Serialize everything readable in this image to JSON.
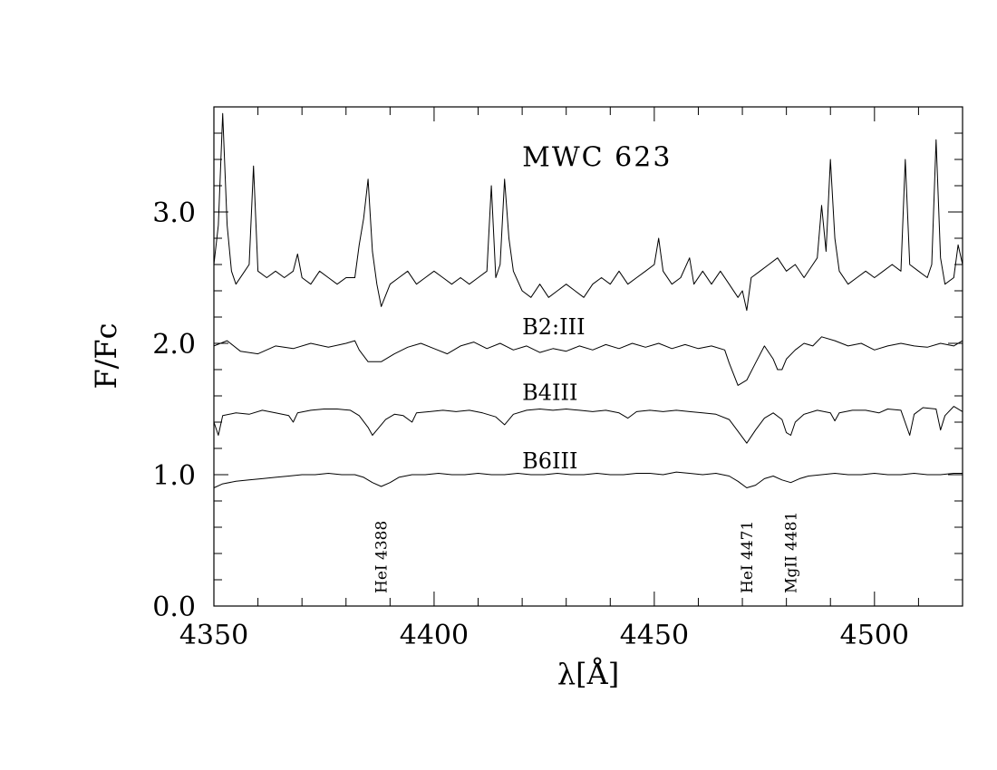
{
  "chart_data": {
    "type": "line",
    "title": "",
    "xlabel": "λ[Å]",
    "ylabel": "F/Fc",
    "xlim": [
      4350,
      4520
    ],
    "ylim": [
      0.0,
      3.8
    ],
    "x_ticks": [
      4350,
      4400,
      4450,
      4500
    ],
    "x_tick_labels": [
      "4350",
      "4400",
      "4450",
      "4500"
    ],
    "y_ticks": [
      0.0,
      1.0,
      2.0,
      3.0
    ],
    "y_tick_labels": [
      "0.0",
      "1.0",
      "2.0",
      "3.0"
    ],
    "grid": false,
    "legend": "none",
    "annotations": [
      {
        "text": "MWC 623",
        "x": 4420,
        "y": 3.35
      },
      {
        "text": "B2:III",
        "x": 4420,
        "y": 2.07
      },
      {
        "text": "B4III",
        "x": 4420,
        "y": 1.57
      },
      {
        "text": "B6III",
        "x": 4420,
        "y": 1.05
      }
    ],
    "line_marks": [
      {
        "text": "HeI  4388",
        "x": 4388
      },
      {
        "text": "HeI  4471",
        "x": 4471
      },
      {
        "text": "MgII  4481",
        "x": 4481
      }
    ],
    "series": [
      {
        "points": [
          [
            4350,
            2.6
          ],
          [
            4351,
            2.9
          ],
          [
            4352,
            3.75
          ],
          [
            4353,
            2.9
          ],
          [
            4354,
            2.55
          ],
          [
            4355,
            2.45
          ],
          [
            4357,
            2.55
          ],
          [
            4358,
            2.6
          ],
          [
            4359,
            3.35
          ],
          [
            4360,
            2.55
          ],
          [
            4362,
            2.5
          ],
          [
            4364,
            2.55
          ],
          [
            4366,
            2.5
          ],
          [
            4368,
            2.55
          ],
          [
            4369,
            2.68
          ],
          [
            4370,
            2.5
          ],
          [
            4372,
            2.45
          ],
          [
            4374,
            2.55
          ],
          [
            4376,
            2.5
          ],
          [
            4378,
            2.45
          ],
          [
            4380,
            2.5
          ],
          [
            4382,
            2.5
          ],
          [
            4383,
            2.75
          ],
          [
            4384,
            2.95
          ],
          [
            4385,
            3.25
          ],
          [
            4386,
            2.7
          ],
          [
            4387,
            2.45
          ],
          [
            4388,
            2.28
          ],
          [
            4390,
            2.45
          ],
          [
            4392,
            2.5
          ],
          [
            4394,
            2.55
          ],
          [
            4396,
            2.45
          ],
          [
            4398,
            2.5
          ],
          [
            4400,
            2.55
          ],
          [
            4402,
            2.5
          ],
          [
            4404,
            2.45
          ],
          [
            4406,
            2.5
          ],
          [
            4408,
            2.45
          ],
          [
            4410,
            2.5
          ],
          [
            4412,
            2.55
          ],
          [
            4413,
            3.2
          ],
          [
            4414,
            2.5
          ],
          [
            4415,
            2.6
          ],
          [
            4416,
            3.25
          ],
          [
            4417,
            2.8
          ],
          [
            4418,
            2.55
          ],
          [
            4420,
            2.4
          ],
          [
            4422,
            2.35
          ],
          [
            4424,
            2.45
          ],
          [
            4426,
            2.35
          ],
          [
            4428,
            2.4
          ],
          [
            4430,
            2.45
          ],
          [
            4432,
            2.4
          ],
          [
            4434,
            2.35
          ],
          [
            4436,
            2.45
          ],
          [
            4438,
            2.5
          ],
          [
            4440,
            2.45
          ],
          [
            4442,
            2.55
          ],
          [
            4444,
            2.45
          ],
          [
            4446,
            2.5
          ],
          [
            4448,
            2.55
          ],
          [
            4450,
            2.6
          ],
          [
            4451,
            2.8
          ],
          [
            4452,
            2.55
          ],
          [
            4454,
            2.45
          ],
          [
            4456,
            2.5
          ],
          [
            4458,
            2.65
          ],
          [
            4459,
            2.45
          ],
          [
            4461,
            2.55
          ],
          [
            4463,
            2.45
          ],
          [
            4465,
            2.55
          ],
          [
            4467,
            2.45
          ],
          [
            4469,
            2.35
          ],
          [
            4470,
            2.4
          ],
          [
            4471,
            2.25
          ],
          [
            4472,
            2.5
          ],
          [
            4474,
            2.55
          ],
          [
            4476,
            2.6
          ],
          [
            4478,
            2.65
          ],
          [
            4480,
            2.55
          ],
          [
            4482,
            2.6
          ],
          [
            4484,
            2.5
          ],
          [
            4486,
            2.6
          ],
          [
            4487,
            2.65
          ],
          [
            4488,
            3.05
          ],
          [
            4489,
            2.7
          ],
          [
            4490,
            3.4
          ],
          [
            4491,
            2.8
          ],
          [
            4492,
            2.55
          ],
          [
            4494,
            2.45
          ],
          [
            4496,
            2.5
          ],
          [
            4498,
            2.55
          ],
          [
            4500,
            2.5
          ],
          [
            4502,
            2.55
          ],
          [
            4504,
            2.6
          ],
          [
            4506,
            2.55
          ],
          [
            4507,
            3.4
          ],
          [
            4508,
            2.6
          ],
          [
            4510,
            2.55
          ],
          [
            4512,
            2.5
          ],
          [
            4513,
            2.6
          ],
          [
            4514,
            3.55
          ],
          [
            4515,
            2.65
          ],
          [
            4516,
            2.45
          ],
          [
            4518,
            2.5
          ],
          [
            4519,
            2.75
          ],
          [
            4520,
            2.6
          ]
        ]
      },
      {
        "points": [
          [
            4350,
            1.98
          ],
          [
            4353,
            2.02
          ],
          [
            4356,
            1.94
          ],
          [
            4360,
            1.92
          ],
          [
            4364,
            1.98
          ],
          [
            4368,
            1.96
          ],
          [
            4372,
            2.0
          ],
          [
            4376,
            1.97
          ],
          [
            4380,
            2.0
          ],
          [
            4382,
            2.02
          ],
          [
            4383,
            1.95
          ],
          [
            4385,
            1.86
          ],
          [
            4388,
            1.86
          ],
          [
            4391,
            1.92
          ],
          [
            4394,
            1.97
          ],
          [
            4397,
            2.0
          ],
          [
            4400,
            1.96
          ],
          [
            4403,
            1.92
          ],
          [
            4406,
            1.98
          ],
          [
            4409,
            2.01
          ],
          [
            4412,
            1.96
          ],
          [
            4415,
            2.0
          ],
          [
            4418,
            1.95
          ],
          [
            4421,
            1.98
          ],
          [
            4424,
            1.93
          ],
          [
            4427,
            1.96
          ],
          [
            4430,
            1.94
          ],
          [
            4433,
            1.98
          ],
          [
            4436,
            1.95
          ],
          [
            4439,
            1.99
          ],
          [
            4442,
            1.96
          ],
          [
            4445,
            2.0
          ],
          [
            4448,
            1.97
          ],
          [
            4451,
            2.0
          ],
          [
            4454,
            1.96
          ],
          [
            4457,
            1.99
          ],
          [
            4460,
            1.96
          ],
          [
            4463,
            1.98
          ],
          [
            4466,
            1.95
          ],
          [
            4467,
            1.85
          ],
          [
            4469,
            1.68
          ],
          [
            4471,
            1.72
          ],
          [
            4473,
            1.85
          ],
          [
            4475,
            1.98
          ],
          [
            4477,
            1.88
          ],
          [
            4478,
            1.8
          ],
          [
            4479,
            1.8
          ],
          [
            4480,
            1.88
          ],
          [
            4482,
            1.95
          ],
          [
            4484,
            2.0
          ],
          [
            4486,
            1.98
          ],
          [
            4488,
            2.05
          ],
          [
            4491,
            2.02
          ],
          [
            4494,
            1.98
          ],
          [
            4497,
            2.0
          ],
          [
            4500,
            1.95
          ],
          [
            4503,
            1.98
          ],
          [
            4506,
            2.0
          ],
          [
            4509,
            1.98
          ],
          [
            4512,
            1.97
          ],
          [
            4515,
            2.0
          ],
          [
            4518,
            1.98
          ],
          [
            4520,
            2.02
          ]
        ]
      },
      {
        "points": [
          [
            4350,
            1.4
          ],
          [
            4351,
            1.3
          ],
          [
            4352,
            1.45
          ],
          [
            4355,
            1.47
          ],
          [
            4358,
            1.46
          ],
          [
            4361,
            1.49
          ],
          [
            4364,
            1.47
          ],
          [
            4367,
            1.45
          ],
          [
            4368,
            1.4
          ],
          [
            4369,
            1.47
          ],
          [
            4372,
            1.49
          ],
          [
            4375,
            1.5
          ],
          [
            4378,
            1.5
          ],
          [
            4381,
            1.49
          ],
          [
            4383,
            1.45
          ],
          [
            4385,
            1.36
          ],
          [
            4386,
            1.3
          ],
          [
            4387,
            1.34
          ],
          [
            4389,
            1.42
          ],
          [
            4391,
            1.46
          ],
          [
            4393,
            1.45
          ],
          [
            4395,
            1.4
          ],
          [
            4396,
            1.47
          ],
          [
            4399,
            1.48
          ],
          [
            4402,
            1.49
          ],
          [
            4405,
            1.48
          ],
          [
            4408,
            1.49
          ],
          [
            4411,
            1.47
          ],
          [
            4414,
            1.44
          ],
          [
            4416,
            1.38
          ],
          [
            4418,
            1.46
          ],
          [
            4421,
            1.49
          ],
          [
            4424,
            1.5
          ],
          [
            4427,
            1.49
          ],
          [
            4430,
            1.5
          ],
          [
            4433,
            1.49
          ],
          [
            4436,
            1.48
          ],
          [
            4439,
            1.49
          ],
          [
            4442,
            1.47
          ],
          [
            4444,
            1.43
          ],
          [
            4446,
            1.48
          ],
          [
            4449,
            1.49
          ],
          [
            4452,
            1.48
          ],
          [
            4455,
            1.49
          ],
          [
            4458,
            1.48
          ],
          [
            4461,
            1.47
          ],
          [
            4464,
            1.46
          ],
          [
            4467,
            1.42
          ],
          [
            4469,
            1.33
          ],
          [
            4471,
            1.24
          ],
          [
            4473,
            1.34
          ],
          [
            4475,
            1.43
          ],
          [
            4477,
            1.47
          ],
          [
            4479,
            1.42
          ],
          [
            4480,
            1.32
          ],
          [
            4481,
            1.3
          ],
          [
            4482,
            1.4
          ],
          [
            4484,
            1.46
          ],
          [
            4487,
            1.49
          ],
          [
            4490,
            1.47
          ],
          [
            4491,
            1.41
          ],
          [
            4492,
            1.47
          ],
          [
            4495,
            1.49
          ],
          [
            4498,
            1.49
          ],
          [
            4501,
            1.47
          ],
          [
            4503,
            1.5
          ],
          [
            4506,
            1.49
          ],
          [
            4508,
            1.3
          ],
          [
            4509,
            1.46
          ],
          [
            4511,
            1.51
          ],
          [
            4514,
            1.5
          ],
          [
            4515,
            1.34
          ],
          [
            4516,
            1.45
          ],
          [
            4518,
            1.52
          ],
          [
            4520,
            1.48
          ]
        ]
      },
      {
        "points": [
          [
            4350,
            0.9
          ],
          [
            4352,
            0.93
          ],
          [
            4355,
            0.95
          ],
          [
            4358,
            0.96
          ],
          [
            4361,
            0.97
          ],
          [
            4364,
            0.98
          ],
          [
            4367,
            0.99
          ],
          [
            4370,
            1.0
          ],
          [
            4373,
            1.0
          ],
          [
            4376,
            1.01
          ],
          [
            4379,
            1.0
          ],
          [
            4382,
            1.0
          ],
          [
            4384,
            0.98
          ],
          [
            4386,
            0.94
          ],
          [
            4388,
            0.91
          ],
          [
            4390,
            0.94
          ],
          [
            4392,
            0.98
          ],
          [
            4395,
            1.0
          ],
          [
            4398,
            1.0
          ],
          [
            4401,
            1.01
          ],
          [
            4404,
            1.0
          ],
          [
            4407,
            1.0
          ],
          [
            4410,
            1.01
          ],
          [
            4413,
            1.0
          ],
          [
            4416,
            1.0
          ],
          [
            4419,
            1.01
          ],
          [
            4422,
            1.0
          ],
          [
            4425,
            1.0
          ],
          [
            4428,
            1.01
          ],
          [
            4431,
            1.0
          ],
          [
            4434,
            1.0
          ],
          [
            4437,
            1.01
          ],
          [
            4440,
            1.0
          ],
          [
            4443,
            1.0
          ],
          [
            4446,
            1.01
          ],
          [
            4449,
            1.01
          ],
          [
            4452,
            1.0
          ],
          [
            4455,
            1.02
          ],
          [
            4458,
            1.01
          ],
          [
            4461,
            1.0
          ],
          [
            4464,
            1.01
          ],
          [
            4467,
            0.99
          ],
          [
            4469,
            0.95
          ],
          [
            4471,
            0.9
          ],
          [
            4473,
            0.92
          ],
          [
            4475,
            0.97
          ],
          [
            4477,
            0.99
          ],
          [
            4479,
            0.96
          ],
          [
            4481,
            0.94
          ],
          [
            4483,
            0.97
          ],
          [
            4485,
            0.99
          ],
          [
            4488,
            1.0
          ],
          [
            4491,
            1.01
          ],
          [
            4494,
            1.0
          ],
          [
            4497,
            1.0
          ],
          [
            4500,
            1.01
          ],
          [
            4503,
            1.0
          ],
          [
            4506,
            1.0
          ],
          [
            4509,
            1.01
          ],
          [
            4512,
            1.0
          ],
          [
            4515,
            1.0
          ],
          [
            4518,
            1.01
          ],
          [
            4520,
            1.01
          ]
        ]
      }
    ]
  }
}
